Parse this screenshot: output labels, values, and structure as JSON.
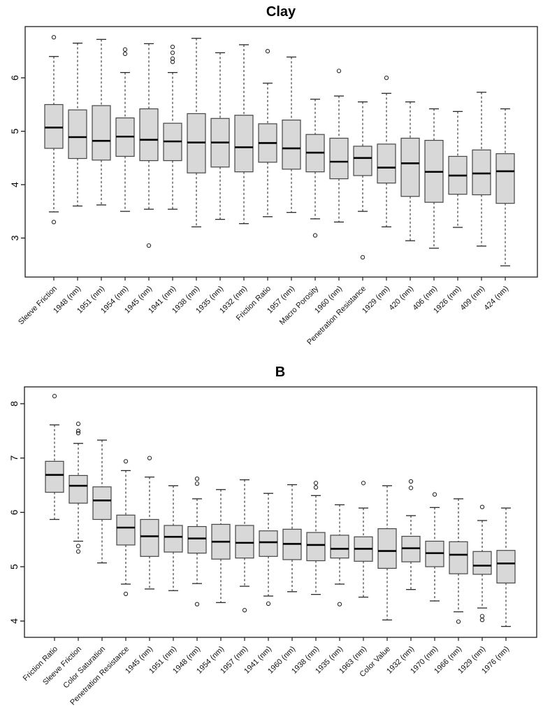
{
  "figure": {
    "background": "#ffffff",
    "panel_titles": [
      "Clay",
      "B"
    ]
  },
  "chart_data": [
    {
      "type": "boxplot",
      "title": "Clay",
      "xlabel": "",
      "ylabel": "",
      "ylim": [
        2.27,
        6.96
      ],
      "yticks": [
        3,
        4,
        5,
        6
      ],
      "grid": false,
      "legend": "none",
      "box_fill": "#d8d8d8",
      "box_border": "#454545",
      "median_color": "#000000",
      "categories": [
        "Sleeve Friction",
        "1948 (nm)",
        "1951 (nm)",
        "1954 (nm)",
        "1945 (nm)",
        "1941 (nm)",
        "1938 (nm)",
        "1935 (nm)",
        "1932 (nm)",
        "Friction Ratio",
        "1957 (nm)",
        "Macro Porosity",
        "1960 (nm)",
        "Penetration Resistance",
        "1929 (nm)",
        "420 (nm)",
        "406 (nm)",
        "1926 (nm)",
        "409 (nm)",
        "424 (nm)"
      ],
      "boxes": [
        {
          "label": "Sleeve Friction",
          "whisker_low": 3.49,
          "q1": 4.68,
          "median": 5.07,
          "q3": 5.5,
          "whisker_high": 6.4,
          "outliers": [
            6.76,
            3.3
          ]
        },
        {
          "label": "1948 (nm)",
          "whisker_low": 3.6,
          "q1": 4.49,
          "median": 4.89,
          "q3": 5.4,
          "whisker_high": 6.65,
          "outliers": []
        },
        {
          "label": "1951 (nm)",
          "whisker_low": 3.62,
          "q1": 4.46,
          "median": 4.82,
          "q3": 5.48,
          "whisker_high": 6.72,
          "outliers": []
        },
        {
          "label": "1954 (nm)",
          "whisker_low": 3.5,
          "q1": 4.53,
          "median": 4.9,
          "q3": 5.25,
          "whisker_high": 6.1,
          "outliers": [
            6.53,
            6.45
          ]
        },
        {
          "label": "1945 (nm)",
          "whisker_low": 3.54,
          "q1": 4.45,
          "median": 4.84,
          "q3": 5.42,
          "whisker_high": 6.64,
          "outliers": [
            2.86
          ]
        },
        {
          "label": "1941 (nm)",
          "whisker_low": 3.54,
          "q1": 4.45,
          "median": 4.81,
          "q3": 5.15,
          "whisker_high": 6.1,
          "outliers": [
            6.58,
            6.47,
            6.36,
            6.3
          ]
        },
        {
          "label": "1938 (nm)",
          "whisker_low": 3.21,
          "q1": 4.22,
          "median": 4.79,
          "q3": 5.33,
          "whisker_high": 6.74,
          "outliers": []
        },
        {
          "label": "1935 (nm)",
          "whisker_low": 3.35,
          "q1": 4.33,
          "median": 4.79,
          "q3": 5.24,
          "whisker_high": 6.47,
          "outliers": []
        },
        {
          "label": "1932 (nm)",
          "whisker_low": 3.27,
          "q1": 4.24,
          "median": 4.7,
          "q3": 5.3,
          "whisker_high": 6.62,
          "outliers": []
        },
        {
          "label": "Friction Ratio",
          "whisker_low": 3.4,
          "q1": 4.42,
          "median": 4.78,
          "q3": 5.14,
          "whisker_high": 5.9,
          "outliers": [
            6.5
          ]
        },
        {
          "label": "1957 (nm)",
          "whisker_low": 3.48,
          "q1": 4.29,
          "median": 4.68,
          "q3": 5.21,
          "whisker_high": 6.39,
          "outliers": []
        },
        {
          "label": "Macro Porosity",
          "whisker_low": 3.36,
          "q1": 4.24,
          "median": 4.6,
          "q3": 4.94,
          "whisker_high": 5.6,
          "outliers": [
            3.05
          ]
        },
        {
          "label": "1960 (nm)",
          "whisker_low": 3.3,
          "q1": 4.11,
          "median": 4.43,
          "q3": 4.87,
          "whisker_high": 5.66,
          "outliers": [
            6.13
          ]
        },
        {
          "label": "Penetration Resistance",
          "whisker_low": 3.5,
          "q1": 4.17,
          "median": 4.5,
          "q3": 4.72,
          "whisker_high": 5.55,
          "outliers": [
            2.64
          ]
        },
        {
          "label": "1929 (nm)",
          "whisker_low": 3.21,
          "q1": 4.03,
          "median": 4.32,
          "q3": 4.76,
          "whisker_high": 5.71,
          "outliers": [
            6.0
          ]
        },
        {
          "label": "420 (nm)",
          "whisker_low": 2.95,
          "q1": 3.78,
          "median": 4.4,
          "q3": 4.87,
          "whisker_high": 5.55,
          "outliers": []
        },
        {
          "label": "406 (nm)",
          "whisker_low": 2.81,
          "q1": 3.67,
          "median": 4.24,
          "q3": 4.83,
          "whisker_high": 5.42,
          "outliers": []
        },
        {
          "label": "1926 (nm)",
          "whisker_low": 3.2,
          "q1": 3.82,
          "median": 4.17,
          "q3": 4.53,
          "whisker_high": 5.37,
          "outliers": []
        },
        {
          "label": "409 (nm)",
          "whisker_low": 2.85,
          "q1": 3.81,
          "median": 4.21,
          "q3": 4.65,
          "whisker_high": 5.73,
          "outliers": []
        },
        {
          "label": "424 (nm)",
          "whisker_low": 2.48,
          "q1": 3.65,
          "median": 4.25,
          "q3": 4.58,
          "whisker_high": 5.42,
          "outliers": []
        }
      ]
    },
    {
      "type": "boxplot",
      "title": "B",
      "xlabel": "",
      "ylabel": "",
      "ylim": [
        3.7,
        8.31
      ],
      "yticks": [
        4,
        5,
        6,
        7,
        8
      ],
      "grid": false,
      "legend": "none",
      "box_fill": "#d8d8d8",
      "box_border": "#454545",
      "median_color": "#000000",
      "categories": [
        "Friction Ratio",
        "Sleeve Friction",
        "Color Saturation",
        "Penetration Resistance",
        "1945 (nm)",
        "1951 (nm)",
        "1948 (nm)",
        "1954 (nm)",
        "1957 (nm)",
        "1941 (nm)",
        "1960 (nm)",
        "1938 (nm)",
        "1935 (nm)",
        "1963 (nm)",
        "Color Value",
        "1932 (nm)",
        "1970 (nm)",
        "1966 (nm)",
        "1929 (nm)",
        "1976 (nm)"
      ],
      "boxes": [
        {
          "label": "Friction Ratio",
          "whisker_low": 5.87,
          "q1": 6.37,
          "median": 6.69,
          "q3": 6.94,
          "whisker_high": 7.61,
          "outliers": [
            8.14
          ]
        },
        {
          "label": "Sleeve Friction",
          "whisker_low": 5.47,
          "q1": 6.17,
          "median": 6.49,
          "q3": 6.68,
          "whisker_high": 7.27,
          "outliers": [
            7.63,
            7.5,
            7.46,
            5.38,
            5.28
          ]
        },
        {
          "label": "Color Saturation",
          "whisker_low": 5.07,
          "q1": 5.87,
          "median": 6.22,
          "q3": 6.47,
          "whisker_high": 7.33,
          "outliers": []
        },
        {
          "label": "Penetration Resistance",
          "whisker_low": 4.68,
          "q1": 5.4,
          "median": 5.72,
          "q3": 5.95,
          "whisker_high": 6.77,
          "outliers": [
            6.94,
            4.5
          ]
        },
        {
          "label": "1945 (nm)",
          "whisker_low": 4.59,
          "q1": 5.19,
          "median": 5.56,
          "q3": 5.87,
          "whisker_high": 6.65,
          "outliers": [
            7.0
          ]
        },
        {
          "label": "1951 (nm)",
          "whisker_low": 4.56,
          "q1": 5.27,
          "median": 5.55,
          "q3": 5.76,
          "whisker_high": 6.49,
          "outliers": []
        },
        {
          "label": "1948 (nm)",
          "whisker_low": 4.69,
          "q1": 5.25,
          "median": 5.52,
          "q3": 5.74,
          "whisker_high": 6.25,
          "outliers": [
            6.62,
            6.53,
            4.31
          ]
        },
        {
          "label": "1954 (nm)",
          "whisker_low": 4.34,
          "q1": 5.14,
          "median": 5.46,
          "q3": 5.78,
          "whisker_high": 6.42,
          "outliers": []
        },
        {
          "label": "1957 (nm)",
          "whisker_low": 4.64,
          "q1": 5.16,
          "median": 5.44,
          "q3": 5.76,
          "whisker_high": 6.6,
          "outliers": [
            4.2
          ]
        },
        {
          "label": "1941 (nm)",
          "whisker_low": 4.46,
          "q1": 5.19,
          "median": 5.45,
          "q3": 5.66,
          "whisker_high": 6.35,
          "outliers": [
            4.32
          ]
        },
        {
          "label": "1960 (nm)",
          "whisker_low": 4.54,
          "q1": 5.13,
          "median": 5.42,
          "q3": 5.69,
          "whisker_high": 6.51,
          "outliers": []
        },
        {
          "label": "1938 (nm)",
          "whisker_low": 4.49,
          "q1": 5.11,
          "median": 5.4,
          "q3": 5.63,
          "whisker_high": 6.31,
          "outliers": [
            6.54,
            6.46
          ]
        },
        {
          "label": "1935 (nm)",
          "whisker_low": 4.68,
          "q1": 5.16,
          "median": 5.33,
          "q3": 5.58,
          "whisker_high": 6.14,
          "outliers": [
            4.31
          ]
        },
        {
          "label": "1963 (nm)",
          "whisker_low": 4.44,
          "q1": 5.1,
          "median": 5.33,
          "q3": 5.55,
          "whisker_high": 6.08,
          "outliers": [
            6.54
          ]
        },
        {
          "label": "Color Value",
          "whisker_low": 4.02,
          "q1": 4.97,
          "median": 5.29,
          "q3": 5.7,
          "whisker_high": 6.49,
          "outliers": []
        },
        {
          "label": "1932 (nm)",
          "whisker_low": 4.58,
          "q1": 5.09,
          "median": 5.34,
          "q3": 5.56,
          "whisker_high": 5.94,
          "outliers": [
            6.57,
            6.45
          ]
        },
        {
          "label": "1970 (nm)",
          "whisker_low": 4.37,
          "q1": 5.0,
          "median": 5.25,
          "q3": 5.47,
          "whisker_high": 6.09,
          "outliers": [
            6.33
          ]
        },
        {
          "label": "1966 (nm)",
          "whisker_low": 4.17,
          "q1": 4.87,
          "median": 5.22,
          "q3": 5.46,
          "whisker_high": 6.25,
          "outliers": [
            3.99
          ]
        },
        {
          "label": "1929 (nm)",
          "whisker_low": 4.24,
          "q1": 4.86,
          "median": 5.02,
          "q3": 5.28,
          "whisker_high": 5.85,
          "outliers": [
            6.1,
            4.09,
            4.02
          ]
        },
        {
          "label": "1976 (nm)",
          "whisker_low": 3.9,
          "q1": 4.7,
          "median": 5.06,
          "q3": 5.3,
          "whisker_high": 6.08,
          "outliers": []
        }
      ]
    }
  ]
}
